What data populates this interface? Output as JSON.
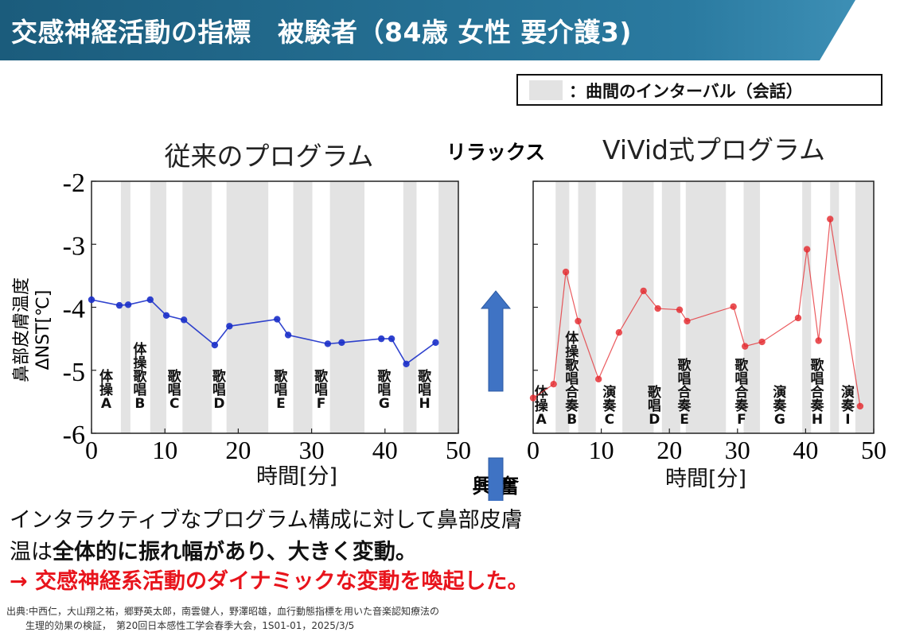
{
  "header": {
    "title": "交感神経活動の指標　被験者（84歳 女性 要介護3)",
    "bg_color": "#1f6585"
  },
  "legend": {
    "label": "：曲間のインターバル（会話）",
    "swatch_color": "#e3e3e3"
  },
  "center_labels": {
    "relax": "リラックス",
    "excite": "興 奮",
    "arrow_color": "#3f73c4"
  },
  "chart_data": [
    {
      "type": "line",
      "title": "従来のプログラム",
      "xlabel": "時間[分]",
      "ylabel": "鼻部皮膚温度ΔNST[℃]",
      "xlim": [
        0,
        50
      ],
      "ylim": [
        -6,
        -2
      ],
      "xticks": [
        "0",
        "10",
        "20",
        "30",
        "40",
        "50"
      ],
      "yticks": [
        "-2",
        "-3",
        "-4",
        "-5",
        "-6"
      ],
      "series_color": "#1a2fc9",
      "intervals": [
        [
          4,
          5.3
        ],
        [
          8,
          10.2
        ],
        [
          12.4,
          16.4
        ],
        [
          18.4,
          24.1
        ],
        [
          27.5,
          30.1
        ],
        [
          32.5,
          37.2
        ],
        [
          42.5,
          44.3
        ],
        [
          47.3,
          50
        ]
      ],
      "x": [
        0,
        3.8,
        5,
        8,
        10.2,
        12.6,
        16.8,
        18.8,
        25.3,
        26.8,
        32.2,
        34.1,
        39.5,
        40.9,
        42.9,
        46.9
      ],
      "values": [
        -3.88,
        -3.97,
        -3.96,
        -3.88,
        -4.13,
        -4.2,
        -4.6,
        -4.3,
        -4.19,
        -4.44,
        -4.58,
        -4.56,
        -4.5,
        -4.5,
        -4.9,
        -4.56
      ],
      "segment_labels": [
        {
          "text": "体操A",
          "x": 2
        },
        {
          "text": "体操歌唱B",
          "x": 6.6
        },
        {
          "text": "歌唱C",
          "x": 11.3
        },
        {
          "text": "歌唱D",
          "x": 17.4
        },
        {
          "text": "歌唱E",
          "x": 25.8
        },
        {
          "text": "歌唱F",
          "x": 31.3
        },
        {
          "text": "歌唱G",
          "x": 39.9
        },
        {
          "text": "歌唱H",
          "x": 45.4
        }
      ]
    },
    {
      "type": "line",
      "title": "ViVid式プログラム",
      "xlabel": "時間[分]",
      "xlim": [
        0,
        50
      ],
      "ylim": [
        -6,
        -2
      ],
      "xticks": [
        "0",
        "10",
        "20",
        "30",
        "40",
        "50"
      ],
      "series_color": "#e4252b",
      "intervals": [
        [
          3.3,
          5.3
        ],
        [
          6.6,
          9.2
        ],
        [
          13.1,
          17.7
        ],
        [
          18.9,
          21.6
        ],
        [
          22.4,
          28.3
        ],
        [
          30.9,
          33.3
        ],
        [
          39.5,
          40.8
        ],
        [
          43.6,
          44.9
        ],
        [
          47.3,
          50
        ]
      ],
      "x": [
        0,
        3,
        4.8,
        6.6,
        9.6,
        12.6,
        16.2,
        18.3,
        21.5,
        22.6,
        29.4,
        31.1,
        33.6,
        38.9,
        40.2,
        41.9,
        43.6,
        48
      ],
      "values": [
        -5.44,
        -5.22,
        -3.44,
        -4.22,
        -5.14,
        -4.4,
        -3.74,
        -4.02,
        -4.04,
        -4.22,
        -3.99,
        -4.62,
        -4.55,
        -4.17,
        -3.08,
        -4.53,
        -2.6,
        -5.57
      ],
      "segment_labels": [
        {
          "text": "体操A",
          "x": 1.2
        },
        {
          "text": "体操歌唱合奏B",
          "x": 5.7
        },
        {
          "text": "演奏C",
          "x": 11.2
        },
        {
          "text": "歌唱D",
          "x": 17.8
        },
        {
          "text": "歌唱合奏E",
          "x": 22.2
        },
        {
          "text": "歌唱合奏F",
          "x": 30.6
        },
        {
          "text": "演奏G",
          "x": 36.2
        },
        {
          "text": "歌唱合奏H",
          "x": 41.7
        },
        {
          "text": "演奏I",
          "x": 46.2
        }
      ]
    }
  ],
  "body": {
    "line1": "インタラクティブなプログラム構成に対して鼻部皮膚",
    "line2_plain": "温は",
    "line2_bold": "全体的に振れ幅があり、大きく変動。",
    "line3": "→ 交感神経系活動のダイナミックな変動を喚起した。"
  },
  "source": {
    "line1": "出典:中西仁，大山翔之祐，郷野英太郎，南雲健人，野澤昭雄，血行動態指標を用いた音楽認知療法の",
    "line2": "　　生理的効果の検証，　第20回日本感性工学会春季大会，1S01-01，2025/3/5"
  }
}
